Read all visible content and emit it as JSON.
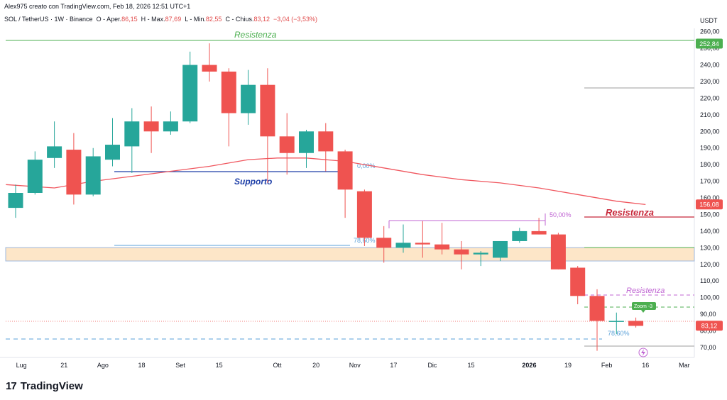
{
  "header": {
    "credit": "Alex975 creato con TradingView.com, Feb 18, 2026 12:51 UTC+1"
  },
  "symbol": {
    "name": "SOL / TetherUS · 1W · Binance",
    "open_label": "O - Aper.",
    "open": "86,15",
    "high_label": "H - Max.",
    "high": "87,69",
    "low_label": "L - Min.",
    "low": "82,55",
    "close_label": "C - Chius.",
    "close": "83,12",
    "change": "−3,04 (−3,53%)"
  },
  "footer": {
    "brand": "TradingView"
  },
  "colors": {
    "up": "#26a69a",
    "down": "#ef5350",
    "ma": "#f0575f",
    "resist_green": "#4caf50",
    "support_blue": "#1e3fa8",
    "resist_red": "#c8293b",
    "purple": "#c066d3",
    "fib_blue": "#5aa0d8",
    "zone": "#fde6c8"
  },
  "chart_data": {
    "type": "candlestick",
    "title": "SOL / TetherUS · 1W · Binance",
    "currency": "USDT",
    "ylim": [
      64,
      262
    ],
    "y_ticks": [
      70,
      80,
      90,
      100,
      110,
      120,
      130,
      140,
      150,
      160,
      170,
      180,
      190,
      200,
      210,
      220,
      230,
      240,
      250,
      260
    ],
    "y_tick_labels": [
      "70,00",
      "80,00",
      "90,00",
      "100,00",
      "110,00",
      "120,00",
      "130,00",
      "140,00",
      "150,00",
      "160,00",
      "170,00",
      "180,00",
      "190,00",
      "200,00",
      "210,00",
      "220,00",
      "230,00",
      "240,00",
      "250,00",
      "260,00"
    ],
    "x_labels": [
      {
        "i": 0.3,
        "text": "Lug"
      },
      {
        "i": 2.5,
        "text": "21"
      },
      {
        "i": 4.5,
        "text": "Ago"
      },
      {
        "i": 6.5,
        "text": "18"
      },
      {
        "i": 8.5,
        "text": "Set"
      },
      {
        "i": 10.5,
        "text": "15"
      },
      {
        "i": 13.5,
        "text": "Ott"
      },
      {
        "i": 15.5,
        "text": "20"
      },
      {
        "i": 17.5,
        "text": "Nov"
      },
      {
        "i": 19.5,
        "text": "17"
      },
      {
        "i": 21.5,
        "text": "Dic"
      },
      {
        "i": 23.5,
        "text": "15"
      },
      {
        "i": 26.5,
        "text": "2026",
        "bold": true
      },
      {
        "i": 28.5,
        "text": "19"
      },
      {
        "i": 30.5,
        "text": "Feb"
      },
      {
        "i": 32.5,
        "text": "16"
      },
      {
        "i": 34.5,
        "text": "Mar"
      }
    ],
    "candles": [
      {
        "o": 154,
        "h": 168,
        "l": 148,
        "c": 163
      },
      {
        "o": 163,
        "h": 188,
        "l": 162,
        "c": 183
      },
      {
        "o": 184,
        "h": 206,
        "l": 178,
        "c": 191
      },
      {
        "o": 189,
        "h": 199,
        "l": 156,
        "c": 162
      },
      {
        "o": 162,
        "h": 190,
        "l": 161,
        "c": 185
      },
      {
        "o": 183,
        "h": 208,
        "l": 179,
        "c": 192
      },
      {
        "o": 191,
        "h": 214,
        "l": 175,
        "c": 206
      },
      {
        "o": 206,
        "h": 215,
        "l": 187,
        "c": 200
      },
      {
        "o": 200,
        "h": 212,
        "l": 198,
        "c": 206
      },
      {
        "o": 206,
        "h": 248,
        "l": 205,
        "c": 240
      },
      {
        "o": 240,
        "h": 253,
        "l": 230,
        "c": 236
      },
      {
        "o": 236,
        "h": 238,
        "l": 191,
        "c": 211
      },
      {
        "o": 211,
        "h": 237,
        "l": 204,
        "c": 228
      },
      {
        "o": 228,
        "h": 238,
        "l": 169,
        "c": 197
      },
      {
        "o": 197,
        "h": 211,
        "l": 174,
        "c": 187
      },
      {
        "o": 187,
        "h": 201,
        "l": 178,
        "c": 200
      },
      {
        "o": 200,
        "h": 205,
        "l": 176,
        "c": 188
      },
      {
        "o": 188,
        "h": 189,
        "l": 148,
        "c": 165
      },
      {
        "o": 164,
        "h": 165,
        "l": 131,
        "c": 136
      },
      {
        "o": 136,
        "h": 143,
        "l": 121,
        "c": 130
      },
      {
        "o": 130,
        "h": 144,
        "l": 127,
        "c": 133
      },
      {
        "o": 133,
        "h": 146,
        "l": 124,
        "c": 132
      },
      {
        "o": 132,
        "h": 145,
        "l": 126,
        "c": 129
      },
      {
        "o": 129,
        "h": 134,
        "l": 117,
        "c": 126
      },
      {
        "o": 126,
        "h": 128,
        "l": 119,
        "c": 127
      },
      {
        "o": 124,
        "h": 133,
        "l": 122,
        "c": 134
      },
      {
        "o": 134,
        "h": 142,
        "l": 133,
        "c": 140
      },
      {
        "o": 140,
        "h": 148,
        "l": 138,
        "c": 138
      },
      {
        "o": 138,
        "h": 139,
        "l": 117,
        "c": 117
      },
      {
        "o": 118,
        "h": 119,
        "l": 96,
        "c": 101
      },
      {
        "o": 101,
        "h": 105,
        "l": 68,
        "c": 86
      },
      {
        "o": 86,
        "h": 91,
        "l": 78,
        "c": 86
      },
      {
        "o": 86,
        "h": 88,
        "l": 82,
        "c": 83
      }
    ],
    "moving_average": [
      {
        "i": -0.5,
        "v": 168
      },
      {
        "i": 2,
        "v": 166
      },
      {
        "i": 4,
        "v": 170
      },
      {
        "i": 6,
        "v": 173
      },
      {
        "i": 8,
        "v": 176
      },
      {
        "i": 10,
        "v": 179
      },
      {
        "i": 12,
        "v": 183
      },
      {
        "i": 13.5,
        "v": 184
      },
      {
        "i": 15,
        "v": 184
      },
      {
        "i": 17,
        "v": 182
      },
      {
        "i": 19,
        "v": 178
      },
      {
        "i": 21,
        "v": 174
      },
      {
        "i": 23,
        "v": 171
      },
      {
        "i": 25,
        "v": 169
      },
      {
        "i": 27,
        "v": 166
      },
      {
        "i": 29,
        "v": 162
      },
      {
        "i": 31,
        "v": 158
      },
      {
        "i": 32.5,
        "v": 156
      }
    ],
    "price_labels": [
      {
        "value": 252.84,
        "text": "252,84",
        "color": "#4caf50"
      },
      {
        "value": 156.08,
        "text": "156,08",
        "color": "#ef5350"
      },
      {
        "value": 83.12,
        "text": "83,12",
        "color": "#ef5350"
      }
    ],
    "annotations": [
      {
        "text": "Resistenza",
        "color": "#4caf50"
      },
      {
        "text": "Supporto",
        "color": "#1e3fa8"
      },
      {
        "text": "Resistenza",
        "color": "#c8293b"
      },
      {
        "text": "Resistenza",
        "color": "#c066d3"
      },
      {
        "text": "0,00%",
        "color": "#5aa0d8"
      },
      {
        "text": "78,60%",
        "color": "#5aa0d8"
      },
      {
        "text": "50,00%",
        "color": "#c066d3"
      },
      {
        "text": "78,60%",
        "color": "#5aa0d8"
      },
      {
        "text": "Zoom -3",
        "color": "#4caf50"
      }
    ]
  }
}
